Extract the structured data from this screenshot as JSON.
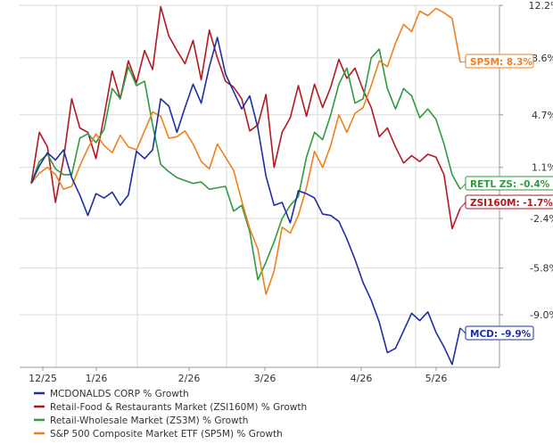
{
  "chart_data": {
    "type": "line",
    "x_labels": [
      "12/25",
      "1/26",
      "2/26",
      "3/26",
      "4/26",
      "5/26"
    ],
    "y_ticks": [
      "12.2%",
      "8.6%",
      "4.7%",
      "1.1%",
      "-2.4%",
      "-5.8%",
      "-9.0%"
    ],
    "y_tick_values": [
      12.2,
      8.6,
      4.7,
      1.1,
      -2.4,
      -5.8,
      -9.0
    ],
    "ylim": [
      -12.6,
      12.2
    ],
    "grid": true,
    "legend_position": "bottom",
    "series": [
      {
        "name": "MCDONALDS CORP % Growth",
        "color": "#1f2fa3",
        "end_label": "MCD: -9.9%",
        "values": [
          0.0,
          1.2,
          2.1,
          1.6,
          2.3,
          0.4,
          -0.8,
          -2.2,
          -0.7,
          -1.0,
          -0.6,
          -1.5,
          -0.8,
          2.2,
          1.7,
          2.3,
          5.8,
          5.3,
          3.5,
          5.2,
          6.8,
          5.5,
          8.0,
          10.0,
          7.5,
          6.3,
          5.1,
          6.0,
          3.8,
          0.5,
          -1.5,
          -1.3,
          -2.7,
          -0.5,
          -0.7,
          -1.0,
          -2.1,
          -2.2,
          -2.6,
          -3.8,
          -5.2,
          -6.8,
          -8.0,
          -9.5,
          -11.6,
          -11.3,
          -10.1,
          -8.9,
          -9.4,
          -8.8,
          -10.2,
          -11.2,
          -12.4,
          -9.9
        ]
      },
      {
        "name": "Retail-Food & Restaurants Market (ZSI160M) % Growth",
        "color": "#b3191e",
        "end_label": "ZSI160M: -1.7%",
        "values": [
          0.0,
          3.5,
          2.5,
          -1.3,
          1.7,
          5.8,
          3.8,
          3.5,
          1.7,
          4.6,
          7.7,
          5.8,
          8.4,
          6.9,
          9.1,
          7.8,
          12.1,
          10.1,
          9.1,
          8.2,
          9.8,
          7.1,
          10.5,
          8.6,
          7.0,
          6.6,
          5.8,
          3.6,
          4.0,
          6.1,
          1.1,
          3.5,
          4.5,
          6.7,
          4.6,
          6.8,
          5.2,
          6.6,
          8.5,
          7.2,
          7.9,
          6.4,
          5.2,
          3.2,
          3.8,
          2.5,
          1.4,
          1.9,
          1.5,
          2.0,
          1.8,
          0.6,
          -3.1,
          -1.7
        ]
      },
      {
        "name": "Retail-Wholesale Market (ZS3M) % Growth",
        "color": "#2e9b3f",
        "end_label": "RETL ZS: -0.4%",
        "values": [
          0.0,
          1.5,
          2.0,
          1.0,
          0.6,
          0.6,
          3.1,
          3.4,
          2.8,
          3.7,
          6.5,
          5.8,
          8.0,
          6.7,
          7.0,
          4.0,
          1.3,
          0.8,
          0.4,
          0.2,
          0.0,
          0.1,
          -0.4,
          -0.3,
          -0.2,
          -1.9,
          -1.5,
          -3.3,
          -6.6,
          -5.4,
          -4.0,
          -2.4,
          -1.5,
          -0.9,
          1.8,
          3.5,
          3.0,
          4.7,
          6.8,
          7.9,
          5.5,
          5.8,
          8.6,
          9.2,
          6.5,
          5.1,
          6.5,
          6.0,
          4.5,
          5.1,
          4.4,
          2.7,
          0.6,
          -0.4
        ]
      },
      {
        "name": "S&P 500 Composite Market ETF (SP5M) % Growth",
        "color": "#f07f1d",
        "end_label": "SP5M: 8.3%",
        "values": [
          0.0,
          0.7,
          1.1,
          0.6,
          -0.4,
          -0.2,
          1.2,
          2.4,
          3.4,
          2.6,
          2.1,
          3.3,
          2.5,
          2.3,
          3.6,
          4.9,
          4.6,
          3.1,
          3.2,
          3.6,
          2.7,
          1.5,
          1.0,
          2.7,
          1.8,
          0.9,
          -1.2,
          -3.1,
          -4.5,
          -7.6,
          -6.0,
          -3.0,
          -3.4,
          -2.2,
          -0.3,
          2.2,
          1.1,
          2.6,
          4.7,
          3.5,
          4.8,
          5.2,
          6.7,
          8.4,
          8.0,
          9.6,
          10.9,
          10.4,
          11.8,
          11.5,
          12.0,
          11.7,
          11.3,
          8.3
        ]
      }
    ]
  }
}
